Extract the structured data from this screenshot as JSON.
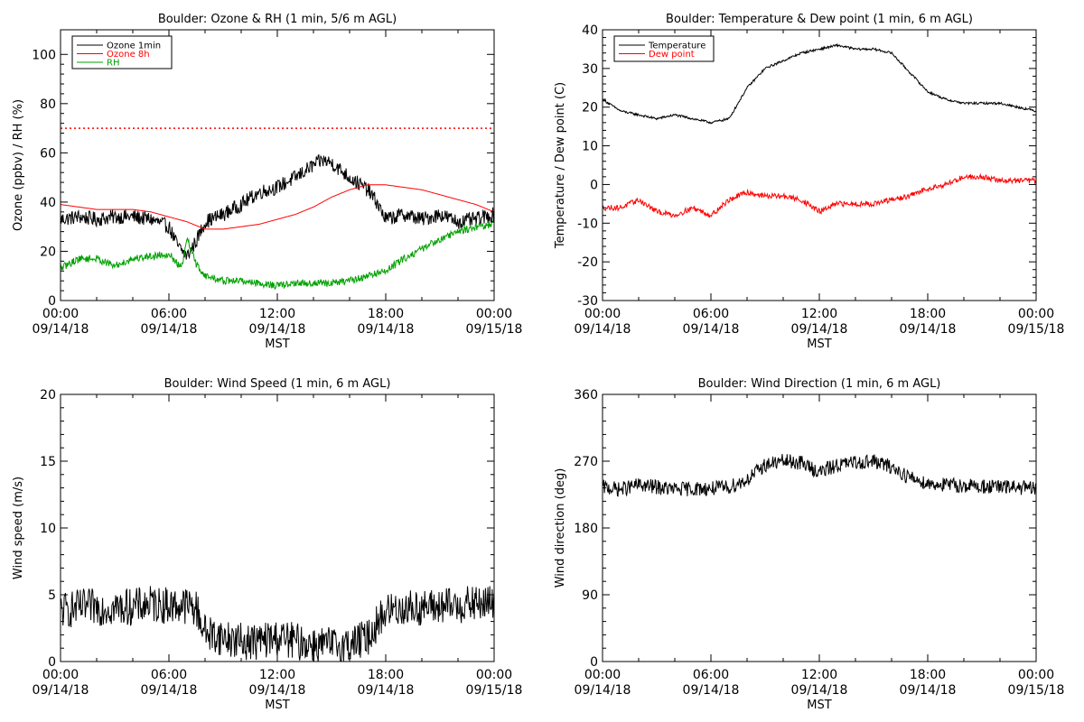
{
  "chart_data": [
    {
      "type": "line",
      "title": "Boulder: Ozone & RH (1 min, 5/6 m AGL)",
      "xlabel": "MST",
      "ylabel": "Ozone (ppbv) / RH (%)",
      "xlim": [
        0,
        24
      ],
      "ylim": [
        0,
        110
      ],
      "yticks": [
        0,
        20,
        40,
        60,
        80,
        100
      ],
      "xtick_labels": [
        [
          "00:00",
          "09/14/18"
        ],
        [
          "06:00",
          "09/14/18"
        ],
        [
          "12:00",
          "09/14/18"
        ],
        [
          "18:00",
          "09/14/18"
        ],
        [
          "00:00",
          "09/15/18"
        ]
      ],
      "grid": false,
      "legend": "top-left",
      "reference_line": {
        "y": 70,
        "color": "#ff0000",
        "style": "dotted"
      },
      "series": [
        {
          "name": "Ozone 1min",
          "color": "#000000",
          "noise": 3,
          "x": [
            0,
            1,
            2,
            3,
            4,
            5,
            6,
            6.5,
            7,
            7.5,
            8,
            9,
            10,
            11,
            12,
            13,
            14,
            14.5,
            15,
            16,
            17,
            17.5,
            18,
            19,
            20,
            21,
            22,
            23,
            24
          ],
          "y": [
            33,
            34,
            33,
            34,
            34,
            33,
            30,
            22,
            18,
            24,
            32,
            35,
            39,
            44,
            46,
            50,
            55,
            57,
            56,
            50,
            45,
            40,
            33,
            35,
            33,
            35,
            32,
            33,
            35
          ]
        },
        {
          "name": "Ozone 8h",
          "color": "#ff0000",
          "noise": 0,
          "x": [
            0,
            1,
            2,
            3,
            4,
            5,
            6,
            7,
            8,
            9,
            10,
            11,
            12,
            13,
            14,
            15,
            16,
            17,
            18,
            19,
            20,
            21,
            22,
            23,
            24
          ],
          "y": [
            39,
            38,
            37,
            37,
            37,
            36,
            34,
            32,
            29,
            29,
            30,
            31,
            33,
            35,
            38,
            42,
            45,
            47,
            47,
            46,
            45,
            43,
            41,
            39,
            36
          ]
        },
        {
          "name": "RH",
          "color": "#00a000",
          "noise": 1.5,
          "x": [
            0,
            1,
            2,
            3,
            4,
            5,
            6,
            6.7,
            7,
            7.5,
            8,
            9,
            10,
            11,
            12,
            13,
            14,
            15,
            16,
            17,
            18,
            19,
            20,
            21,
            22,
            23,
            24
          ],
          "y": [
            13,
            17,
            17,
            14,
            17,
            18,
            19,
            13,
            25,
            15,
            10,
            8,
            8,
            7,
            6,
            7,
            7,
            7,
            8,
            10,
            12,
            17,
            21,
            25,
            28,
            30,
            31
          ]
        }
      ]
    },
    {
      "type": "line",
      "title": "Boulder: Temperature & Dew point (1 min, 6 m AGL)",
      "xlabel": "MST",
      "ylabel": "Temperature / Dew point (C)",
      "xlim": [
        0,
        24
      ],
      "ylim": [
        -30,
        40
      ],
      "yticks": [
        -30,
        -20,
        -10,
        0,
        10,
        20,
        30,
        40
      ],
      "xtick_labels": [
        [
          "00:00",
          "09/14/18"
        ],
        [
          "06:00",
          "09/14/18"
        ],
        [
          "12:00",
          "09/14/18"
        ],
        [
          "18:00",
          "09/14/18"
        ],
        [
          "00:00",
          "09/15/18"
        ]
      ],
      "grid": false,
      "legend": "top-left",
      "series": [
        {
          "name": "Temperature",
          "color": "#000000",
          "noise": 0.3,
          "x": [
            0,
            1,
            2,
            3,
            4,
            5,
            6,
            7,
            8,
            9,
            10,
            11,
            12,
            13,
            14,
            15,
            16,
            17,
            18,
            19,
            20,
            21,
            22,
            23,
            24
          ],
          "y": [
            22,
            19,
            18,
            17,
            18,
            17,
            16,
            17,
            25,
            30,
            32,
            34,
            35,
            36,
            35,
            35,
            34,
            29,
            24,
            22,
            21,
            21,
            21,
            20,
            19
          ]
        },
        {
          "name": "Dew point",
          "color": "#ff0000",
          "noise": 0.7,
          "x": [
            0,
            1,
            2,
            3,
            4,
            5,
            6,
            7,
            8,
            9,
            10,
            11,
            12,
            13,
            14,
            15,
            16,
            17,
            18,
            19,
            20,
            21,
            22,
            23,
            24
          ],
          "y": [
            -6,
            -6,
            -4,
            -7,
            -8,
            -6,
            -8,
            -4,
            -2,
            -3,
            -3,
            -4,
            -7,
            -5,
            -5,
            -5,
            -4,
            -3,
            -1,
            0,
            2,
            2,
            1,
            1,
            1
          ]
        }
      ]
    },
    {
      "type": "line",
      "title": "Boulder: Wind Speed (1 min, 6 m AGL)",
      "xlabel": "MST",
      "ylabel": "Wind speed (m/s)",
      "xlim": [
        0,
        24
      ],
      "ylim": [
        0,
        20
      ],
      "yticks": [
        0,
        5,
        10,
        15,
        20
      ],
      "xtick_labels": [
        [
          "00:00",
          "09/14/18"
        ],
        [
          "06:00",
          "09/14/18"
        ],
        [
          "12:00",
          "09/14/18"
        ],
        [
          "18:00",
          "09/14/18"
        ],
        [
          "00:00",
          "09/15/18"
        ]
      ],
      "grid": false,
      "series": [
        {
          "color": "#000000",
          "noise": 1.4,
          "x": [
            0,
            1,
            2,
            3,
            4,
            5,
            6,
            7,
            7.5,
            8,
            9,
            10,
            11,
            12,
            13,
            14,
            15,
            16,
            17,
            18,
            19,
            20,
            21,
            22,
            23,
            24
          ],
          "y": [
            3.8,
            4,
            4.1,
            4,
            4.1,
            4.3,
            4.2,
            4.2,
            4,
            2.2,
            1.8,
            1.5,
            1.5,
            1.8,
            1.5,
            1.3,
            1.2,
            1.3,
            1.8,
            3.8,
            4,
            4,
            4.1,
            4.2,
            4.3,
            4.4
          ]
        }
      ]
    },
    {
      "type": "line",
      "title": "Boulder: Wind Direction (1 min, 6 m AGL)",
      "xlabel": "MST",
      "ylabel": "Wind direction (deg)",
      "xlim": [
        0,
        24
      ],
      "ylim": [
        0,
        360
      ],
      "yticks": [
        0,
        90,
        180,
        270,
        360
      ],
      "xtick_labels": [
        [
          "00:00",
          "09/14/18"
        ],
        [
          "06:00",
          "09/14/18"
        ],
        [
          "12:00",
          "09/14/18"
        ],
        [
          "18:00",
          "09/14/18"
        ],
        [
          "00:00",
          "09/15/18"
        ]
      ],
      "grid": false,
      "series": [
        {
          "color": "#000000",
          "noise": 10,
          "x": [
            0,
            1,
            2,
            3,
            4,
            5,
            6,
            7,
            8,
            9,
            10,
            11,
            12,
            13,
            14,
            15,
            16,
            17,
            18,
            19,
            20,
            21,
            22,
            23,
            24
          ],
          "y": [
            235,
            232,
            238,
            235,
            232,
            233,
            233,
            235,
            245,
            265,
            270,
            268,
            255,
            265,
            268,
            270,
            262,
            248,
            240,
            238,
            237,
            236,
            235,
            235,
            232
          ]
        }
      ]
    }
  ]
}
